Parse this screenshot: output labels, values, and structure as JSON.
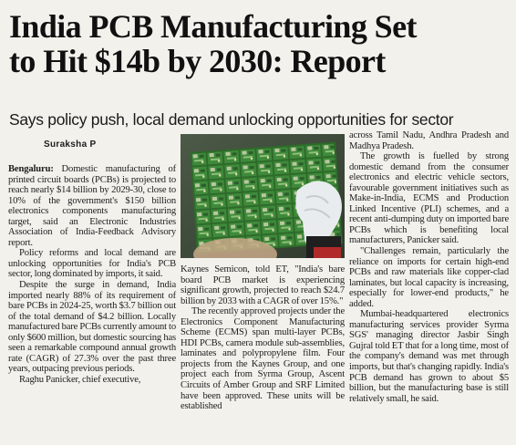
{
  "headline": {
    "line1": "India PCB Manufacturing Set",
    "line2": "to Hit $14b by 2030: Report"
  },
  "subhead": "Says policy push, local demand unlocking opportunities for sector",
  "byline": "Suraksha P",
  "article": {
    "dateline": "Bengaluru:",
    "col1": [
      " Domestic manufacturing of printed circuit boards (PCBs) is projected to reach nearly $14 billion by 2029-30, close to 10% of the government's $150 billion electronics components manufacturing target, said an Electronic Industries Association of India-Feedback Advisory report.",
      "Policy reforms and local demand are unlocking opportunities for India's PCB sector, long dominated by imports, it said.",
      "Despite the surge in demand, India imported nearly 88% of its requirement of bare PCBs in 2024-25, worth $3.7 billion out of the total demand of $4.2 billion. Locally manufactured bare PCBs currently amount to only $600 million, but domestic sourcing has seen a remarkable compound annual growth rate (CAGR) of 27.3% over the past three years, outpacing previous periods.",
      "Raghu Panicker, chief executive,"
    ],
    "col2": [
      "Kaynes Semicon, told ET, \"India's bare board PCB market is experiencing significant growth, projected to reach $24.7 billion by 2033 with a CAGR of over 15%.\"",
      "The recently approved projects under the Electronics Component Manufacturing Scheme (ECMS) span multi-layer PCBs, HDI PCBs, camera module sub-assemblies, laminates and polypropylene film. Four projects from the Kaynes Group, and one project each from Syrma Group, Ascent Circuits of Amber Group and SRF Limited have been approved. These units will be established"
    ],
    "col3": [
      "across Tamil Nadu, Andhra Pradesh and Madhya Pradesh.",
      "The growth is fuelled by strong domestic demand from the consumer electronics and electric vehicle sectors, favourable government initiatives such as Make-in-India, ECMS and Production Linked Incentive (PLI) schemes, and a recent anti-dumping duty on imported bare PCBs which is benefiting local manufacturers, Panicker said.",
      "\"Challenges remain, particularly the reliance on imports for certain high-end PCBs and raw materials like copper-clad laminates, but local capacity is increasing, especially for lower-end products,\" he added.",
      "Mumbai-headquartered electronics manufacturing services provider Syrma SGS' managing director Jasbir Singh Gujral told ET that for a long time, most of the company's demand was met through imports, but that's changing rapidly. India's PCB demand has grown to about $5 billion, but the manufacturing base is still relatively small, he said."
    ]
  },
  "photo": {
    "description_icon": "pcb-photo"
  }
}
